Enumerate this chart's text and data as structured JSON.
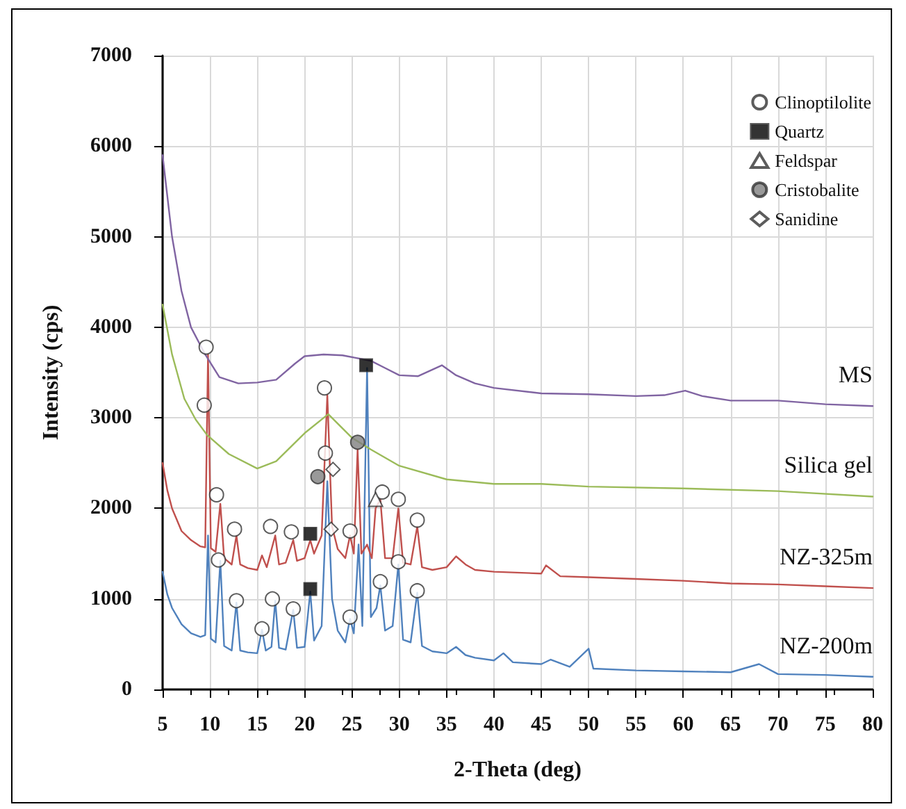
{
  "chart_data": {
    "type": "line",
    "xlabel": "2-Theta (deg)",
    "ylabel": "Intensity (cps)",
    "xlim": [
      5,
      80
    ],
    "xticks": [
      5,
      10,
      15,
      20,
      25,
      30,
      35,
      40,
      45,
      50,
      55,
      60,
      65,
      70,
      75,
      80
    ],
    "ylim": [
      0,
      7000
    ],
    "yticks": [
      0,
      1000,
      2000,
      3000,
      4000,
      5000,
      6000,
      7000
    ],
    "grid": true,
    "legend": "top right",
    "marker": "none",
    "line_style": "solid",
    "series": [
      {
        "name": "NZ-200m",
        "color": "#4f81bd",
        "x": [
          5,
          5.5,
          6,
          7,
          8,
          9,
          9.5,
          9.8,
          10.1,
          10.6,
          11.1,
          11.5,
          12.3,
          12.8,
          13.2,
          14,
          15,
          15.5,
          15.9,
          16.5,
          16.9,
          17.3,
          18,
          18.8,
          19.2,
          20,
          20.6,
          21,
          21.8,
          22.4,
          22.9,
          23.5,
          24.3,
          24.8,
          25.2,
          25.7,
          26.1,
          26.6,
          27,
          27.6,
          28,
          28.5,
          29.3,
          29.9,
          30.4,
          31.2,
          31.9,
          32.4,
          33.5,
          35,
          36,
          37,
          38,
          40,
          41,
          42,
          45,
          46,
          48,
          50,
          50.5,
          55,
          60,
          65,
          68,
          70,
          75,
          80
        ],
        "values": [
          1300,
          1050,
          900,
          720,
          620,
          580,
          600,
          1700,
          560,
          520,
          1420,
          480,
          430,
          960,
          430,
          410,
          400,
          660,
          430,
          470,
          980,
          460,
          440,
          880,
          460,
          470,
          1080,
          540,
          700,
          2300,
          1000,
          650,
          520,
          780,
          620,
          1600,
          700,
          3550,
          800,
          900,
          1150,
          650,
          700,
          1380,
          550,
          520,
          1070,
          480,
          420,
          400,
          470,
          380,
          350,
          320,
          400,
          300,
          280,
          330,
          250,
          450,
          230,
          210,
          200,
          190,
          280,
          170,
          160,
          140
        ]
      },
      {
        "name": "NZ-325m",
        "color": "#c0504d",
        "x": [
          5,
          5.5,
          6,
          7,
          8,
          9,
          9.5,
          9.8,
          10.1,
          10.6,
          11.1,
          11.5,
          12.3,
          12.8,
          13.2,
          14,
          15,
          15.5,
          16,
          16.9,
          17.3,
          18,
          18.8,
          19.2,
          20,
          20.6,
          21,
          21.8,
          22.4,
          22.9,
          23.5,
          24.3,
          24.8,
          25.2,
          25.6,
          26,
          26.6,
          27.1,
          27.5,
          28,
          28.5,
          29.3,
          29.9,
          30.4,
          31.2,
          31.9,
          32.4,
          33.5,
          35,
          36,
          37,
          38,
          40,
          45,
          45.5,
          47,
          50,
          55,
          60,
          65,
          70,
          75,
          80
        ],
        "values": [
          2500,
          2200,
          2000,
          1750,
          1650,
          1580,
          1570,
          3700,
          1560,
          1520,
          2050,
          1450,
          1380,
          1700,
          1380,
          1340,
          1320,
          1480,
          1350,
          1700,
          1380,
          1400,
          1650,
          1420,
          1450,
          1650,
          1500,
          1700,
          3250,
          1800,
          1550,
          1450,
          1700,
          1500,
          2650,
          1500,
          1600,
          1450,
          2000,
          2100,
          1450,
          1450,
          2000,
          1400,
          1380,
          1800,
          1350,
          1320,
          1350,
          1470,
          1380,
          1320,
          1300,
          1280,
          1370,
          1250,
          1240,
          1220,
          1200,
          1170,
          1160,
          1140,
          1120
        ]
      },
      {
        "name": "Silica gel",
        "color": "#9bbb59",
        "x": [
          5,
          6,
          7.3,
          8.5,
          9.7,
          12,
          15,
          17,
          20,
          22.5,
          25,
          27,
          30,
          35,
          40,
          45,
          50,
          60,
          70,
          80
        ],
        "values": [
          4250,
          3700,
          3210,
          2980,
          2810,
          2600,
          2440,
          2520,
          2830,
          3040,
          2780,
          2650,
          2470,
          2320,
          2270,
          2270,
          2240,
          2220,
          2190,
          2130
        ]
      },
      {
        "name": "MS",
        "color": "#8064a2",
        "x": [
          5,
          6,
          7,
          8,
          9.5,
          11,
          13,
          15,
          17,
          19,
          20,
          22,
          24,
          26,
          27,
          28.5,
          30,
          32,
          34.5,
          36,
          38,
          40,
          45,
          50,
          55,
          58,
          60.2,
          62,
          65,
          70,
          75,
          80
        ],
        "values": [
          5900,
          5000,
          4400,
          4000,
          3700,
          3450,
          3380,
          3390,
          3420,
          3600,
          3680,
          3700,
          3690,
          3650,
          3630,
          3550,
          3470,
          3460,
          3580,
          3470,
          3380,
          3330,
          3270,
          3260,
          3240,
          3250,
          3300,
          3240,
          3190,
          3190,
          3150,
          3130
        ]
      },
      {
        "name": "Clinoptilolite",
        "type": "scatter",
        "marker": "circle",
        "color": "#ffffff",
        "x": [
          9.6,
          9.4,
          10.7,
          10.9,
          12.6,
          12.8,
          15.5,
          16.4,
          16.6,
          18.6,
          18.8,
          22.1,
          22.2,
          24.8,
          24.8,
          28.2,
          28.0,
          29.9,
          29.9,
          31.9,
          31.9
        ],
        "values": [
          3780,
          3140,
          2150,
          1430,
          1770,
          980,
          670,
          1800,
          1000,
          1740,
          890,
          3330,
          2610,
          1750,
          800,
          2180,
          1190,
          2100,
          1410,
          1870,
          1090
        ]
      },
      {
        "name": "Quartz",
        "type": "scatter",
        "marker": "square",
        "color": "#000000",
        "x": [
          26.5,
          20.6,
          20.6
        ],
        "values": [
          3580,
          1720,
          1110
        ]
      },
      {
        "name": "Feldspar",
        "type": "scatter",
        "marker": "triangle",
        "color": "#ffffff",
        "x": [
          27.5
        ],
        "values": [
          2100
        ]
      },
      {
        "name": "Cristobalite",
        "type": "scatter",
        "marker": "circle",
        "color": "#7f7f7f",
        "x": [
          21.4,
          25.6
        ],
        "values": [
          2350,
          2730
        ]
      },
      {
        "name": "Sanidine",
        "type": "scatter",
        "marker": "diamond",
        "color": "#ffffff",
        "x": [
          23.0,
          22.8
        ],
        "values": [
          2430,
          1770
        ]
      }
    ]
  }
}
